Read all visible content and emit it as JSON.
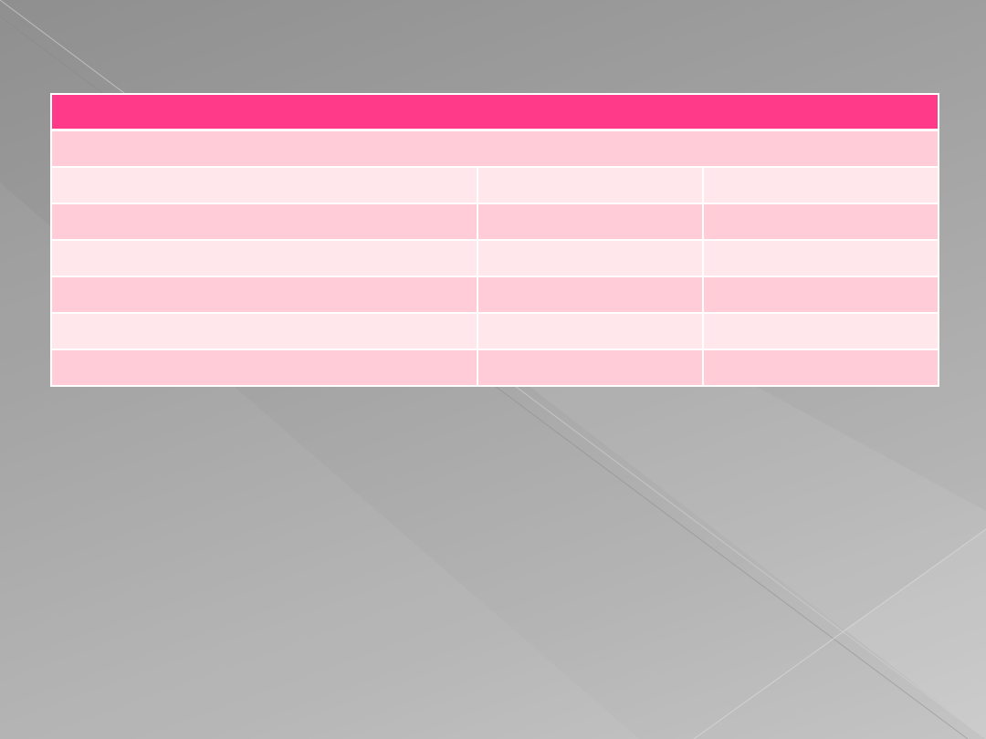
{
  "colors": {
    "header": "#ff3a88",
    "band_dark": "#ffccd8",
    "band_light": "#ffe7eb"
  },
  "table": {
    "header": "",
    "subheader": "",
    "rows": [
      [
        "",
        "",
        ""
      ],
      [
        "",
        "",
        ""
      ],
      [
        "",
        "",
        ""
      ],
      [
        "",
        "",
        ""
      ],
      [
        "",
        "",
        ""
      ],
      [
        "",
        "",
        ""
      ]
    ]
  }
}
